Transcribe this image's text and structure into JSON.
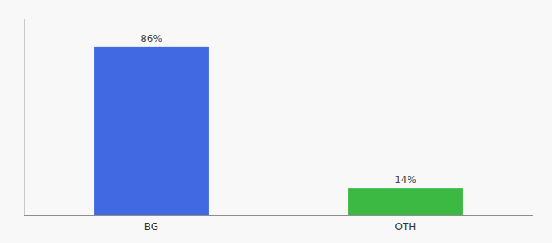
{
  "chart_data": {
    "type": "bar",
    "categories": [
      "BG",
      "OTH"
    ],
    "values": [
      86,
      14
    ],
    "colors": [
      "#4169E1",
      "#3CB943"
    ],
    "value_labels": [
      "86%",
      "14%"
    ],
    "data_labels": true,
    "ylim": [
      0,
      100
    ],
    "tick_labels": "x",
    "grid": false
  }
}
